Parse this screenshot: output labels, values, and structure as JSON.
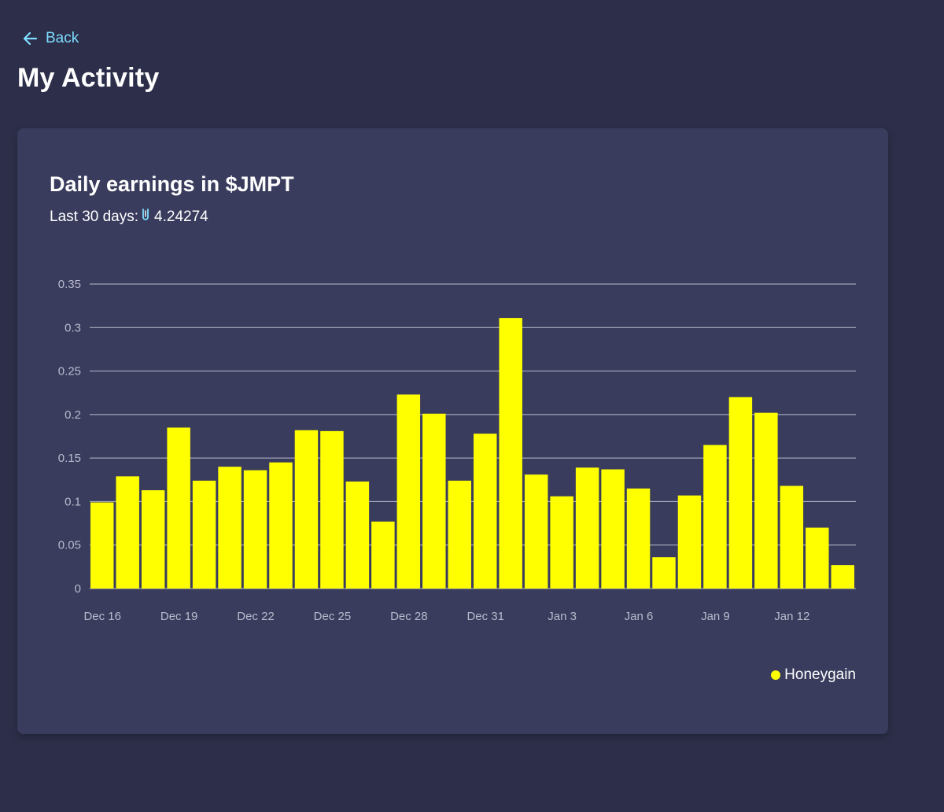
{
  "nav": {
    "back_label": "Back",
    "back_icon": "arrow-left-icon"
  },
  "page": {
    "title": "My Activity"
  },
  "card": {
    "title": "Daily earnings in $JMPT",
    "subtitle_prefix": "Last 30 days:",
    "token_icon": "jmpt-token-icon",
    "subtitle_value": "4.24274"
  },
  "colors": {
    "background": "#2d2f4a",
    "card": "#393c5d",
    "accent": "#7fdcff",
    "bar": "#ffff00",
    "grid": "#b9bbcc",
    "tick": "#b9bbcc"
  },
  "chart_data": {
    "type": "bar",
    "title": "Daily earnings in $JMPT",
    "xlabel": "",
    "ylabel": "",
    "ylim": [
      0,
      0.35
    ],
    "yticks": [
      "0",
      "0.05",
      "0.1",
      "0.15",
      "0.2",
      "0.25",
      "0.3",
      "0.35"
    ],
    "grid": true,
    "legend_position": "bottom-right",
    "categories": [
      "Dec 16",
      "Dec 17",
      "Dec 18",
      "Dec 19",
      "Dec 20",
      "Dec 21",
      "Dec 22",
      "Dec 23",
      "Dec 24",
      "Dec 25",
      "Dec 26",
      "Dec 27",
      "Dec 28",
      "Dec 29",
      "Dec 30",
      "Dec 31",
      "Jan 1",
      "Jan 2",
      "Jan 3",
      "Jan 4",
      "Jan 5",
      "Jan 6",
      "Jan 7",
      "Jan 8",
      "Jan 9",
      "Jan 10",
      "Jan 11",
      "Jan 12",
      "Jan 13",
      "Jan 14"
    ],
    "xtick_labels": [
      "Dec 16",
      "Dec 19",
      "Dec 22",
      "Dec 25",
      "Dec 28",
      "Dec 31",
      "Jan 3",
      "Jan 6",
      "Jan 9",
      "Jan 12"
    ],
    "series": [
      {
        "name": "Honeygain",
        "color": "#ffff00",
        "values": [
          0.099,
          0.129,
          0.113,
          0.185,
          0.124,
          0.14,
          0.136,
          0.145,
          0.182,
          0.181,
          0.123,
          0.077,
          0.223,
          0.201,
          0.124,
          0.178,
          0.311,
          0.131,
          0.106,
          0.139,
          0.137,
          0.115,
          0.036,
          0.107,
          0.165,
          0.22,
          0.202,
          0.118,
          0.07,
          0.027
        ]
      }
    ]
  }
}
